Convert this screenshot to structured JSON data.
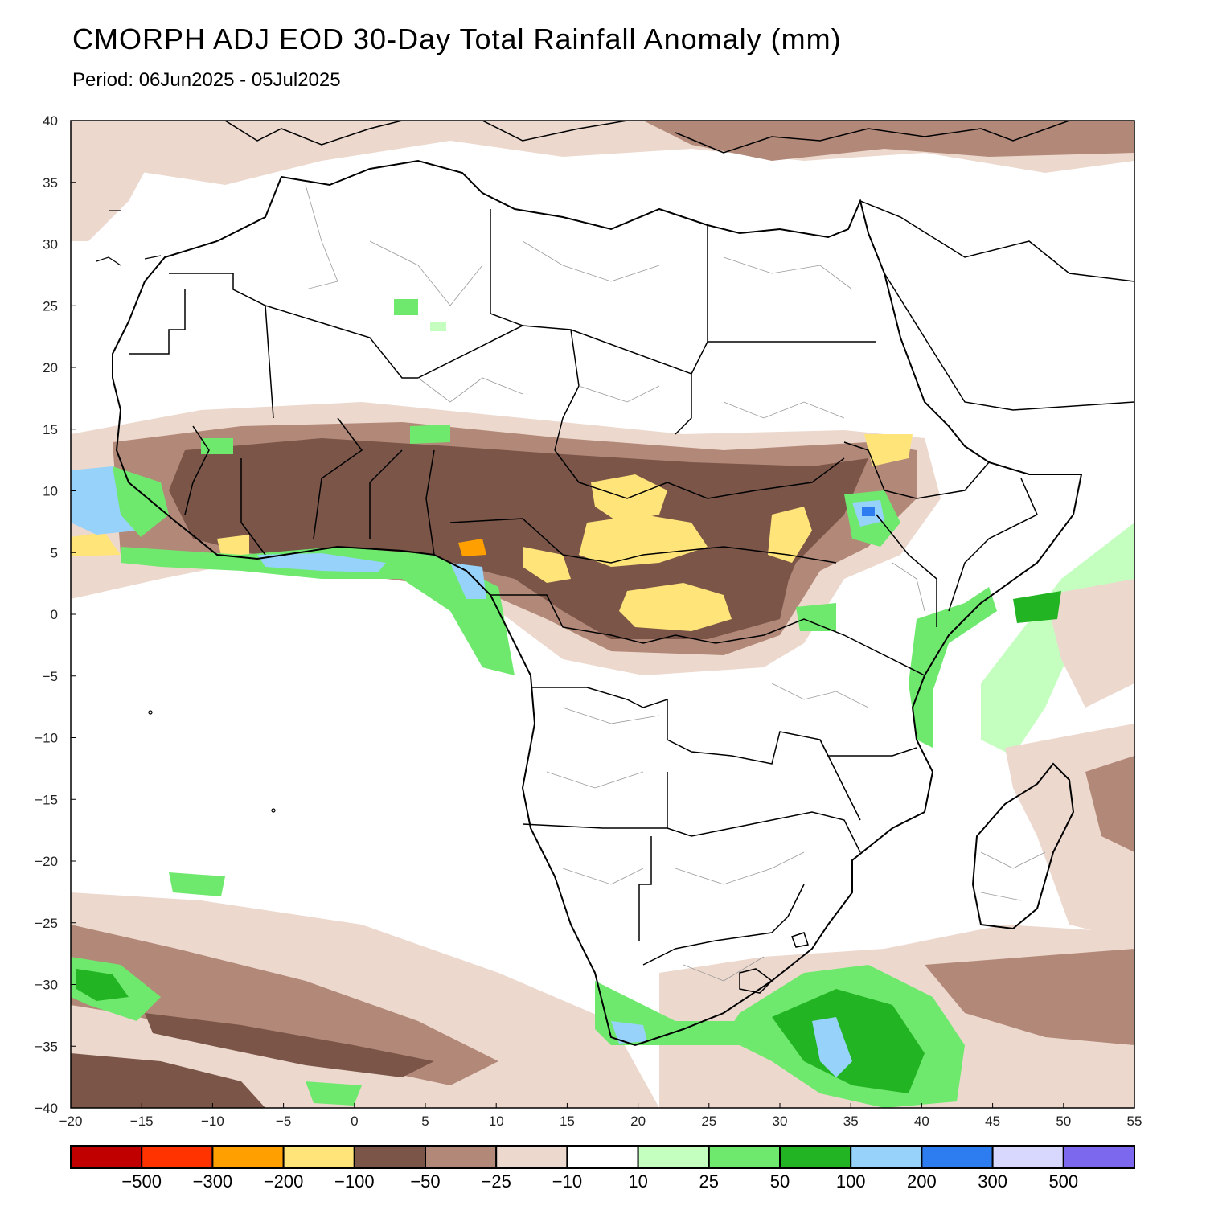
{
  "header": {
    "title": "CMORPH ADJ EOD 30-Day Total Rainfall Anomaly (mm)",
    "period": "Period: 06Jun2025 - 05Jul2025"
  },
  "map": {
    "lon_range": [
      -20,
      55
    ],
    "lat_range": [
      -40,
      40
    ],
    "lon_ticks": [
      "-20",
      "-15",
      "-10",
      "-5",
      "0",
      "5",
      "10",
      "15",
      "20",
      "25",
      "30",
      "35",
      "40",
      "45",
      "50",
      "55"
    ],
    "lat_ticks": [
      "40",
      "35",
      "30",
      "25",
      "20",
      "15",
      "10",
      "5",
      "0",
      "-5",
      "-10",
      "-15",
      "-20",
      "-25",
      "-30",
      "-35",
      "-40"
    ],
    "colors": {
      "land": "#ffffff",
      "coast": "#000000",
      "admin": "#9a9a9a"
    }
  },
  "colorbar": {
    "colors": [
      "#c00000",
      "#ff3300",
      "#ffa000",
      "#ffe47a",
      "#7a5548",
      "#b28878",
      "#ecd8cd",
      "#ffffff",
      "#c4ffc0",
      "#6ee96e",
      "#22b422",
      "#96d2fa",
      "#2e7df0",
      "#d8d8ff",
      "#7b68ee"
    ],
    "labels": [
      "-500",
      "-300",
      "-200",
      "-100",
      "-50",
      "-25",
      "-10",
      "10",
      "25",
      "50",
      "100",
      "200",
      "300",
      "500"
    ]
  }
}
